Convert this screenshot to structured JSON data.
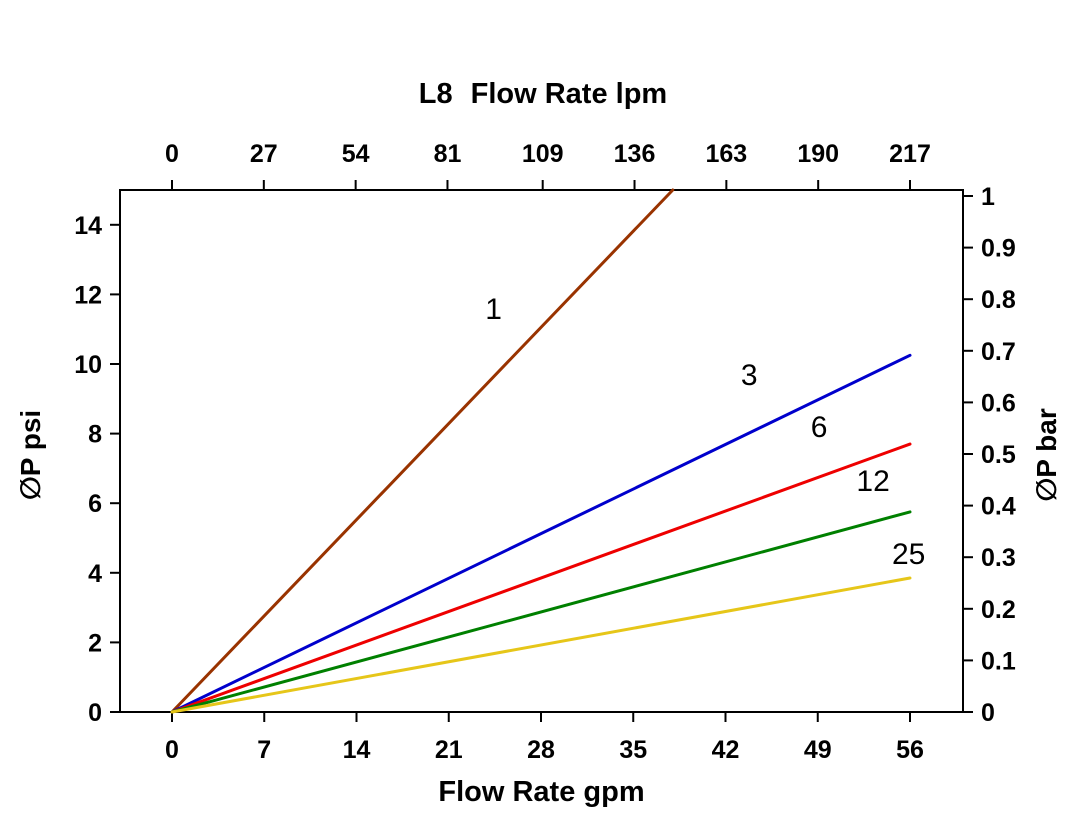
{
  "chart_data": {
    "type": "line",
    "title_prefix": "L8",
    "top_axis": {
      "label": "Flow Rate lpm",
      "ticks": [
        0,
        27,
        54,
        81,
        109,
        136,
        163,
        190,
        217
      ],
      "max": 217
    },
    "x_bottom": {
      "label": "Flow Rate gpm",
      "ticks": [
        0,
        7,
        14,
        21,
        28,
        35,
        42,
        49,
        56
      ],
      "max": 56
    },
    "y_left": {
      "label": "∅P psi",
      "ticks": [
        0,
        2,
        4,
        6,
        8,
        10,
        12,
        14
      ],
      "max": 15
    },
    "y_right": {
      "label": "∅P bar",
      "ticks": [
        0,
        0.1,
        0.2,
        0.3,
        0.4,
        0.5,
        0.6,
        0.7,
        0.8,
        0.9,
        1
      ],
      "max": 1
    },
    "grid": false,
    "legend": false,
    "series": [
      {
        "name": "1",
        "color": "#993300",
        "points": [
          [
            0,
            0
          ],
          [
            38,
            15
          ]
        ],
        "label_at": [
          24.4,
          11.3
        ]
      },
      {
        "name": "3",
        "color": "#0000CC",
        "points": [
          [
            0,
            0
          ],
          [
            56,
            10.25
          ]
        ],
        "label_at": [
          43.8,
          9.4
        ]
      },
      {
        "name": "6",
        "color": "#EE0000",
        "points": [
          [
            0,
            0
          ],
          [
            56,
            7.7
          ]
        ],
        "label_at": [
          49.1,
          7.9
        ]
      },
      {
        "name": "12",
        "color": "#008000",
        "points": [
          [
            0,
            0
          ],
          [
            56,
            5.75
          ]
        ],
        "label_at": [
          53.2,
          6.35
        ]
      },
      {
        "name": "25",
        "color": "#E6C619",
        "points": [
          [
            0,
            0
          ],
          [
            56,
            3.85
          ]
        ],
        "label_at": [
          55.9,
          4.25
        ]
      }
    ]
  }
}
